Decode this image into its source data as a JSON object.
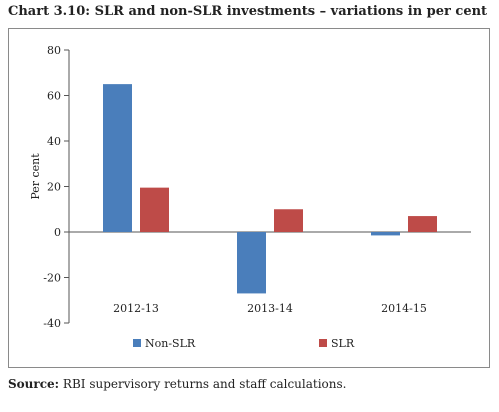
{
  "chart_data": {
    "type": "bar",
    "title": "Chart 3.10: SLR and non-SLR investments – variations in per cent",
    "xlabel": "",
    "ylabel": "Per cent",
    "categories": [
      "2012-13",
      "2013-14",
      "2014-15"
    ],
    "series": [
      {
        "name": "Non-SLR",
        "values": [
          65,
          -27,
          -1.5
        ],
        "color": "#4a7ebb"
      },
      {
        "name": "SLR",
        "values": [
          19.5,
          10,
          7
        ],
        "color": "#be4b48"
      }
    ],
    "ylim": [
      -40,
      80
    ],
    "yticks": [
      -40,
      -20,
      0,
      20,
      40,
      60,
      80
    ],
    "ytick_labels": [
      "-40",
      "-20",
      "0",
      "20",
      "40",
      "60",
      "80"
    ],
    "grid": false,
    "legend": "bottom"
  },
  "source": {
    "label": "Source:",
    "text": "RBI supervisory returns and staff calculations."
  }
}
